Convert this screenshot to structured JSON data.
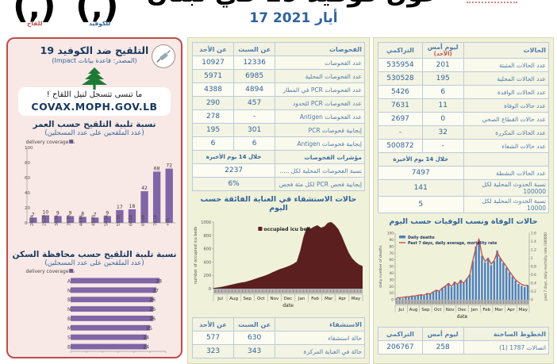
{
  "header": {
    "title_partial": "حول كوفيد 19 في لبنان",
    "date": "17 أيار 2021",
    "badge_covid": "للكوفيد",
    "badge_vaccine": "للقاح",
    "accent_blue": "#2f639b",
    "accent_red": "#c0504d"
  },
  "vaccination_panel": {
    "title": "التلقيح ضد الكوفيد 19",
    "source": "(المصدر: قاعدة بيانات Impact)",
    "reminder_line1": "ما تنسى تتسجل لنيل اللقاح !",
    "reminder_line2": "COVAX.MOPH.GOV.LB"
  },
  "tests_table": {
    "title": "الفحوصات",
    "col_mid": "عن السبت",
    "col_left": "عن الأحد",
    "rows": [
      [
        "عدد الفحوصات",
        "12336",
        "10927"
      ],
      [
        "عدد الفحوصات المحلية",
        "6985",
        "5971"
      ],
      [
        "عدد الفحوصات PCR في المطار",
        "4894",
        "4388"
      ],
      [
        "عدد الفحوصات PCR للحدود",
        "457",
        "290"
      ],
      [
        "عدد الفحوصات Antigen",
        "-",
        "278"
      ],
      [
        "إيجابية فحوصات PCR",
        "301",
        "195"
      ],
      [
        "إيجابية فحوصات Antigen",
        "6",
        "6"
      ]
    ],
    "indicator_header": {
      "label": "مؤشرات الفحوصات",
      "value": "خلال 14 يوم الأخيرة"
    },
    "indicator_rows": [
      [
        "نسبة الفحوصات المحلية لكل .....",
        "2237"
      ],
      [
        "إيجابية فحص PCR لكل مئة فحص",
        "6%"
      ]
    ]
  },
  "hospital_table": {
    "title": "الاستشفاء",
    "col_mid": "عن السبت",
    "col_left": "عن الأحد",
    "rows": [
      [
        "حالة استشفاء",
        "630",
        "577"
      ],
      [
        "حالة في العناية المركزة",
        "343",
        "323"
      ]
    ]
  },
  "cases_table": {
    "title": "الحالات",
    "col_mid": "ليوم أمس",
    "col_mid_sub": "(الأحد)",
    "col_left": "التراكمي",
    "rows": [
      [
        "عدد الحالات المثبتة",
        "201",
        "535954"
      ],
      [
        "عدد الحالات المحلية",
        "195",
        "530528"
      ],
      [
        "عدد الحالات الوافدة",
        "6",
        "5426"
      ],
      [
        "عدد حالات الوفاة",
        "11",
        "7631"
      ],
      [
        "عدد حالات القطاع الصحي",
        "0",
        "2697"
      ],
      [
        "عدد الحالات المكررة",
        "32",
        "-"
      ],
      [
        "عدد حالات الشفاء",
        "-",
        "500872"
      ]
    ],
    "indicator_header": {
      "label": "",
      "value": "خلال 14 يوم الأخيرة"
    },
    "indicator_rows": [
      [
        "عدد الحالات النشطة",
        "7497"
      ],
      [
        "نسبة الحدوث المحلية لكل 100000",
        "141"
      ],
      [
        "نسبة الحدوث المحلية لكل 10000",
        "5"
      ]
    ]
  },
  "hotlines_table": {
    "title": "الخطوط الساخنة",
    "col_mid": "ليوم أمس",
    "col_left": "التراكمي",
    "rows": [
      [
        "اتصالات 1787 (1)",
        "258",
        "206767"
      ]
    ]
  },
  "chart_data": [
    {
      "id": "age",
      "type": "bar",
      "title": "نسبة تلبية التلقيح حسب العمر",
      "subtitle": "(عدد الملقحين على عدد المسجلين)",
      "legend": [
        "% delivery coverage"
      ],
      "categories": [
        "20-24",
        "25-29",
        "30-34",
        "35-39",
        "40-44",
        "45-49",
        "50-54",
        "55-59",
        "60-64",
        "65-69",
        "70-74",
        "75+"
      ],
      "values": [
        7,
        10,
        9,
        9,
        8,
        7,
        9,
        17,
        18,
        42,
        68,
        72
      ],
      "ylim": [
        0,
        100
      ],
      "yticks": [
        0,
        20,
        40,
        60,
        80,
        100
      ],
      "bar_color": "#8066a6",
      "grid": false,
      "data_labels": true
    },
    {
      "id": "gov",
      "type": "bar-horizontal",
      "title": "نسبة تلبية التلقيح حسب محافظة السكن",
      "subtitle": "(عدد الملقحين على عدد المسجلين)",
      "legend": [
        "% delivery coverage"
      ],
      "categories": [
        "Akkar",
        "North",
        "Beirut",
        "Nabatieh",
        "Bekaa",
        "Mount Lebanon",
        "South",
        "Baalbeck Hermel"
      ],
      "values": [
        28,
        27,
        26,
        26,
        26,
        25,
        24,
        24
      ],
      "xlim": [
        0,
        30
      ],
      "bar_color": "#8066a6",
      "grid": false,
      "data_labels": true
    },
    {
      "id": "icu",
      "type": "area",
      "title": "حالات الاستشفاء في العناية الفائقة حسب اليوم",
      "legend": [
        "occupied icu bed"
      ],
      "xlabel": "date",
      "ylabel": "number of occupied icu beds",
      "x_months": [
        "Jul",
        "Aug",
        "Sep",
        "Oct",
        "Nov",
        "Dec",
        "Jan",
        "Feb",
        "Mar",
        "Apr",
        "May"
      ],
      "ylim": [
        0,
        1000
      ],
      "yticks": [
        0,
        200,
        400,
        600,
        800,
        1000
      ],
      "area_color": "#5a1f1e",
      "grid": false,
      "values": [
        10,
        16,
        24,
        34,
        46,
        58,
        70,
        82,
        92,
        100,
        115,
        130,
        148,
        165,
        182,
        200,
        220,
        245,
        268,
        290,
        308,
        326,
        346,
        372,
        405,
        565,
        785,
        930,
        900,
        932,
        952,
        915,
        935,
        990,
        1000,
        955,
        895,
        788,
        660,
        540,
        455,
        400,
        362,
        340
      ]
    },
    {
      "id": "deaths",
      "type": "bar-line",
      "title": "حالات الوفاة ونسب الوفيات حسب اليوم",
      "legend": [
        "Daily deaths",
        "Past 7 days, daily average, mortality rate"
      ],
      "xlabel": "date",
      "ylabel_left": "daily number of deaths",
      "ylabel_right": "past 7 days, daily mortality rate /100000",
      "x_months": [
        "Jul",
        "Aug",
        "Sep",
        "Oct",
        "Nov",
        "Dec",
        "Jan",
        "Feb",
        "Mar",
        "Apr",
        "May"
      ],
      "ylim_left": [
        0,
        100
      ],
      "yticks_left": [
        0,
        10,
        20,
        30,
        40,
        50,
        60,
        70,
        80,
        90,
        100
      ],
      "ylim_right": [
        0,
        1.6
      ],
      "yticks_right": [
        0,
        0.2,
        0.4,
        0.6,
        0.8,
        1,
        1.2,
        1.4,
        1.6
      ],
      "bar_color": "#4f81bd",
      "line_color": "#c0504d",
      "grid": false,
      "bars": [
        2,
        3,
        2,
        4,
        4,
        6,
        5,
        7,
        8,
        6,
        10,
        9,
        12,
        15,
        13,
        18,
        21,
        25,
        19,
        27,
        23,
        30,
        25,
        32,
        38,
        58,
        80,
        90,
        66,
        56,
        62,
        52,
        58,
        74,
        63,
        55,
        48,
        41,
        35,
        29,
        24,
        21,
        19,
        22
      ],
      "line": [
        0.05,
        0.05,
        0.06,
        0.07,
        0.07,
        0.09,
        0.09,
        0.11,
        0.12,
        0.11,
        0.15,
        0.14,
        0.19,
        0.23,
        0.21,
        0.28,
        0.33,
        0.39,
        0.32,
        0.42,
        0.37,
        0.46,
        0.4,
        0.5,
        0.6,
        0.95,
        1.25,
        1.45,
        1.08,
        0.92,
        1.0,
        0.86,
        0.94,
        1.14,
        1.0,
        0.9,
        0.8,
        0.68,
        0.58,
        0.48,
        0.42,
        0.37,
        0.34,
        0.35
      ]
    }
  ]
}
